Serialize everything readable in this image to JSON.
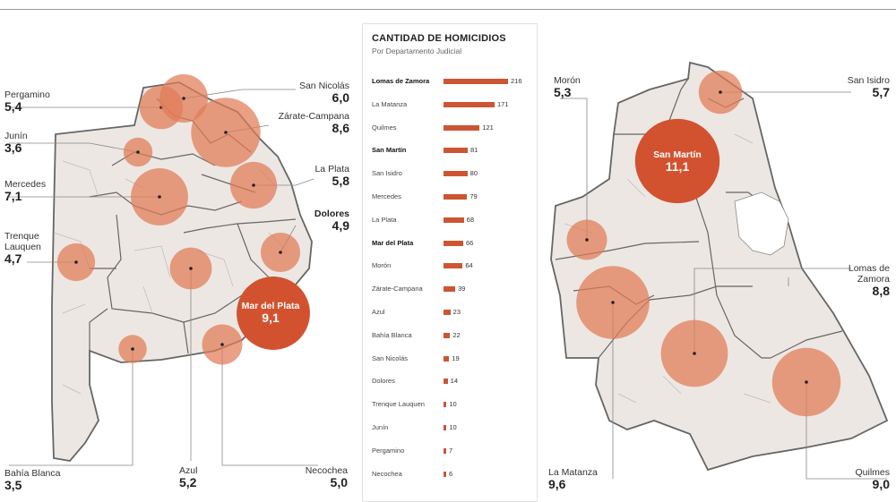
{
  "colors": {
    "circle": "#e07b56",
    "circle_strong": "#d2522f",
    "bar": "#cc5533",
    "region_fill": "#ede7e3",
    "region_stroke": "#666666"
  },
  "chart_data": [
    {
      "type": "bar",
      "orientation": "horizontal",
      "title": "CANTIDAD DE HOMICIDIOS",
      "subtitle": "Por Departamento Judicial",
      "categories": [
        "Lomas de Zamora",
        "La Matanza",
        "Quilmes",
        "San Martín",
        "San Isidro",
        "Mercedes",
        "La Plata",
        "Mar del Plata",
        "Morón",
        "Zárate-Campana",
        "Azul",
        "Bahía Blanca",
        "San Nicolás",
        "Dolores",
        "Trenque Lauquen",
        "Junín",
        "Pergamino",
        "Necochea"
      ],
      "values": [
        216,
        171,
        121,
        81,
        80,
        79,
        68,
        66,
        64,
        39,
        23,
        22,
        19,
        14,
        10,
        10,
        7,
        6
      ],
      "bold_categories": [
        "Lomas de Zamora",
        "San Martín",
        "Mar del Plata"
      ]
    },
    {
      "type": "scatter",
      "name": "province_map",
      "points": [
        {
          "name": "Pergamino",
          "value": "5,4"
        },
        {
          "name": "San Nicolás",
          "value": "6,0"
        },
        {
          "name": "Zárate-Campana",
          "value": "8,6"
        },
        {
          "name": "Junín",
          "value": "3,6"
        },
        {
          "name": "Mercedes",
          "value": "7,1"
        },
        {
          "name": "La Plata",
          "value": "5,8"
        },
        {
          "name": "Dolores",
          "value": "4,9"
        },
        {
          "name": "Trenque Lauquen",
          "value": "4,7"
        },
        {
          "name": "Mar del Plata",
          "value": "9,1"
        },
        {
          "name": "Bahía Blanca",
          "value": "3,5"
        },
        {
          "name": "Azul",
          "value": "5,2"
        },
        {
          "name": "Necochea",
          "value": "5,0"
        }
      ]
    },
    {
      "type": "scatter",
      "name": "conurbano_map",
      "points": [
        {
          "name": "Morón",
          "value": "5,3"
        },
        {
          "name": "San Isidro",
          "value": "5,7"
        },
        {
          "name": "San Martín",
          "value": "11,1"
        },
        {
          "name": "Lomas de Zamora",
          "value": "8,8"
        },
        {
          "name": "La Matanza",
          "value": "9,6"
        },
        {
          "name": "Quilmes",
          "value": "9,0"
        }
      ]
    }
  ],
  "labels": {
    "pergamino": {
      "name": "Pergamino",
      "value": "5,4"
    },
    "san_nicolas": {
      "name": "San Nicolás",
      "value": "6,0"
    },
    "zarate": {
      "name": "Zárate-Campana",
      "value": "8,6"
    },
    "junin": {
      "name": "Junín",
      "value": "3,6"
    },
    "mercedes": {
      "name": "Mercedes",
      "value": "7,1"
    },
    "la_plata": {
      "name": "La Plata",
      "value": "5,8"
    },
    "dolores": {
      "name": "Dolores",
      "value": "4,9"
    },
    "trenque": {
      "name": "Trenque\nLauquen",
      "value": "4,7"
    },
    "mar_del_plata": {
      "name": "Mar del Plata",
      "value": "9,1"
    },
    "bahia": {
      "name": "Bahía Blanca",
      "value": "3,5"
    },
    "azul": {
      "name": "Azul",
      "value": "5,2"
    },
    "necochea": {
      "name": "Necochea",
      "value": "5,0"
    },
    "moron": {
      "name": "Morón",
      "value": "5,3"
    },
    "san_isidro": {
      "name": "San Isidro",
      "value": "5,7"
    },
    "san_martin": {
      "name": "San Martín",
      "value": "11,1"
    },
    "lomas": {
      "name": "Lomas de\nZamora",
      "value": "8,8"
    },
    "la_matanza": {
      "name": "La Matanza",
      "value": "9,6"
    },
    "quilmes": {
      "name": "Quilmes",
      "value": "9,0"
    }
  }
}
